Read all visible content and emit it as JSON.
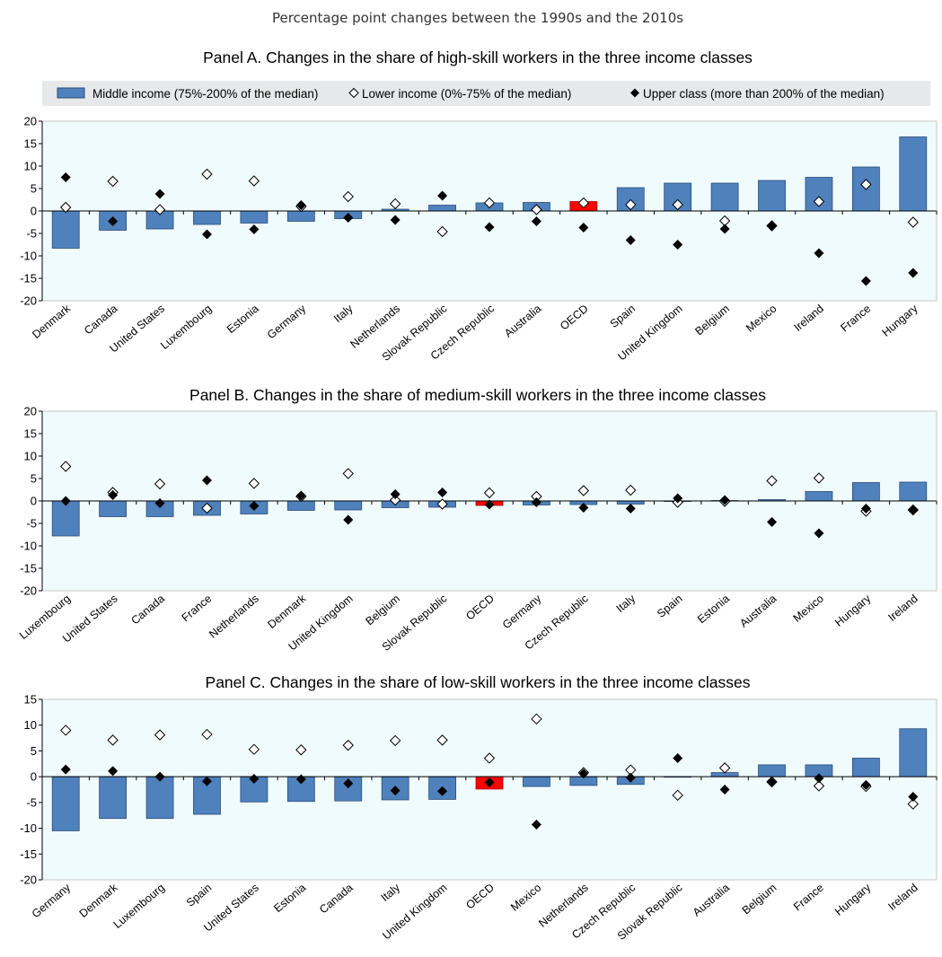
{
  "figure": {
    "supertitle": "Percentage point changes between the 1990s and the 2010s"
  },
  "legend": {
    "middle": "Middle income (75%-200% of the median)",
    "lower": "Lower income (0%-75% of the median)",
    "upper": "Upper class (more than 200% of the median)"
  },
  "colors": {
    "bar": "#4f81bd",
    "bar_border": "#2b4c78",
    "highlight": "#ff0000",
    "plot_bg": "#f0fbfd",
    "legend_bg": "#e7e8e9",
    "marker": "#000000"
  },
  "chart_data": [
    {
      "type": "bar",
      "title": "Panel A. Changes in the share of high-skill workers in the three income classes",
      "ylim": [
        -20,
        20
      ],
      "yticks": [
        20,
        15,
        10,
        5,
        0,
        -5,
        -10,
        -15,
        -20
      ],
      "highlight": "OECD",
      "categories": [
        "Denmark",
        "Canada",
        "United States",
        "Luxembourg",
        "Estonia",
        "Germany",
        "Italy",
        "Netherlands",
        "Slovak Republic",
        "Czech Republic",
        "Australia",
        "OECD",
        "Spain",
        "United Kingdom",
        "Belgium",
        "Mexico",
        "Ireland",
        "France",
        "Hungary"
      ],
      "series": [
        {
          "name": "Middle income (75%-200% of the median)",
          "kind": "bar",
          "values": [
            -8.3,
            -4.3,
            -4.0,
            -3.0,
            -2.7,
            -2.3,
            -1.7,
            0.4,
            1.3,
            1.8,
            1.9,
            2.1,
            5.2,
            6.2,
            6.2,
            6.8,
            7.5,
            9.8,
            16.5
          ]
        },
        {
          "name": "Lower income (0%-75% of the median)",
          "kind": "marker-hollow",
          "values": [
            0.8,
            6.6,
            0.3,
            8.2,
            6.7,
            1.0,
            3.2,
            1.6,
            -4.6,
            1.8,
            0.3,
            1.8,
            1.4,
            1.4,
            -2.2,
            -3.3,
            2.1,
            5.9,
            -2.5
          ]
        },
        {
          "name": "Upper class (more than 200% of the median)",
          "kind": "marker-filled",
          "values": [
            7.5,
            -2.3,
            3.8,
            -5.2,
            -4.1,
            1.3,
            -1.5,
            -2.0,
            3.4,
            -3.6,
            -2.3,
            -3.7,
            -6.5,
            -7.5,
            -4.0,
            -3.4,
            -9.4,
            -15.6,
            -13.8
          ]
        }
      ]
    },
    {
      "type": "bar",
      "title": "Panel B. Changes in the share of medium-skill workers in the three income classes",
      "ylim": [
        -20,
        20
      ],
      "yticks": [
        20,
        15,
        10,
        5,
        0,
        -5,
        -10,
        -15,
        -20
      ],
      "highlight": "OECD",
      "categories": [
        "Luxembourg",
        "United States",
        "Canada",
        "France",
        "Netherlands",
        "Denmark",
        "United Kingdom",
        "Belgium",
        "Slovak Republic",
        "OECD",
        "Germany",
        "Czech Republic",
        "Italy",
        "Spain",
        "Estonia",
        "Australia",
        "Mexico",
        "Hungary",
        "Ireland"
      ],
      "series": [
        {
          "name": "Middle income (75%-200% of the median)",
          "kind": "bar",
          "values": [
            -7.8,
            -3.5,
            -3.5,
            -3.2,
            -2.9,
            -2.1,
            -2.0,
            -1.5,
            -1.4,
            -1.0,
            -0.9,
            -0.8,
            -0.7,
            0.0,
            0.1,
            0.3,
            2.1,
            4.1,
            4.2
          ]
        },
        {
          "name": "Lower income (0%-75% of the median)",
          "kind": "marker-hollow",
          "values": [
            7.7,
            1.9,
            3.8,
            -1.6,
            3.9,
            1.0,
            6.1,
            0.2,
            -0.7,
            1.8,
            1.0,
            2.3,
            2.4,
            -0.3,
            -0.1,
            4.5,
            5.1,
            -2.3,
            -2.0
          ]
        },
        {
          "name": "Upper class (more than 200% of the median)",
          "kind": "marker-filled",
          "values": [
            0.0,
            1.3,
            -0.5,
            4.6,
            -1.1,
            1.2,
            -4.2,
            1.5,
            1.9,
            -0.8,
            -0.3,
            -1.5,
            -1.7,
            0.6,
            0.2,
            -4.7,
            -7.2,
            -1.7,
            -2.1
          ]
        }
      ]
    },
    {
      "type": "bar",
      "title": "Panel C. Changes in the share of low-skill workers in the three income classes",
      "ylim": [
        -20,
        15
      ],
      "yticks": [
        15,
        10,
        5,
        0,
        -5,
        -10,
        -15,
        -20
      ],
      "highlight": "OECD",
      "categories": [
        "Germany",
        "Denmark",
        "Luxembourg",
        "Spain",
        "United States",
        "Estonia",
        "Canada",
        "Italy",
        "United Kingdom",
        "OECD",
        "Mexico",
        "Netherlands",
        "Czech Republic",
        "Slovak Republic",
        "Australia",
        "Belgium",
        "France",
        "Hungary",
        "Ireland"
      ],
      "series": [
        {
          "name": "Middle income (75%-200% of the median)",
          "kind": "bar",
          "values": [
            -10.5,
            -8.1,
            -8.1,
            -7.3,
            -4.9,
            -4.8,
            -4.7,
            -4.5,
            -4.4,
            -2.4,
            -1.9,
            -1.7,
            -1.5,
            0.0,
            0.8,
            2.3,
            2.3,
            3.6,
            9.3
          ]
        },
        {
          "name": "Lower income (0%-75% of the median)",
          "kind": "marker-hollow",
          "values": [
            9.0,
            7.1,
            8.1,
            8.2,
            5.3,
            5.2,
            6.1,
            7.0,
            7.1,
            3.6,
            11.2,
            0.8,
            1.3,
            -3.6,
            1.7,
            -1.0,
            -1.8,
            -1.9,
            -5.3
          ]
        },
        {
          "name": "Upper class (more than 200% of the median)",
          "kind": "marker-filled",
          "values": [
            1.4,
            1.1,
            0.0,
            -0.9,
            -0.4,
            -0.5,
            -1.3,
            -2.7,
            -2.8,
            -1.1,
            -9.3,
            0.6,
            -0.2,
            3.6,
            -2.5,
            -1.1,
            -0.3,
            -1.6,
            -3.9
          ]
        }
      ]
    }
  ]
}
